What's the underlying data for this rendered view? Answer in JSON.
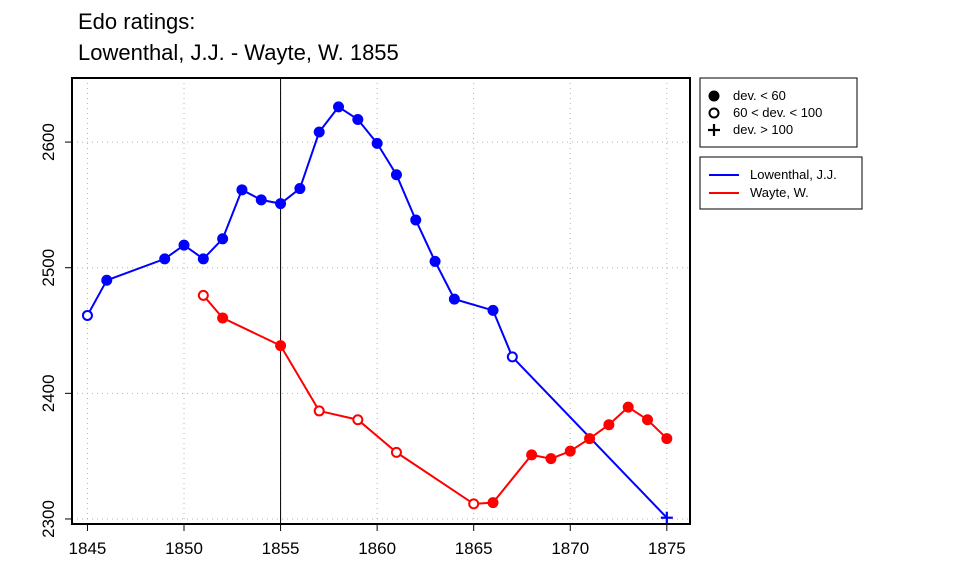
{
  "chart_data": {
    "type": "line",
    "title": "Edo ratings:",
    "subtitle": "Lowenthal, J.J. - Wayte, W. 1855",
    "xlabel": "",
    "ylabel": "",
    "xlim": [
      1844.2,
      1876.2
    ],
    "ylim": [
      2296,
      2651
    ],
    "x_ticks": [
      1845,
      1850,
      1855,
      1860,
      1865,
      1870,
      1875
    ],
    "y_ticks": [
      2300,
      2400,
      2500,
      2600
    ],
    "grid": true,
    "grid_style": "dotted",
    "reference_line_x": 1855,
    "marker_legend": [
      {
        "marker": "filled-circle",
        "label": "dev. < 60"
      },
      {
        "marker": "open-circle",
        "label": "60 < dev. < 100"
      },
      {
        "marker": "plus",
        "label": "dev. > 100"
      }
    ],
    "series": [
      {
        "name": "Lowenthal, J.J.",
        "color": "#0000ff",
        "points": [
          {
            "x": 1845,
            "y": 2462,
            "marker": "open-circle"
          },
          {
            "x": 1846,
            "y": 2490,
            "marker": "filled-circle"
          },
          {
            "x": 1849,
            "y": 2507,
            "marker": "filled-circle"
          },
          {
            "x": 1850,
            "y": 2518,
            "marker": "filled-circle"
          },
          {
            "x": 1851,
            "y": 2507,
            "marker": "filled-circle"
          },
          {
            "x": 1852,
            "y": 2523,
            "marker": "filled-circle"
          },
          {
            "x": 1853,
            "y": 2562,
            "marker": "filled-circle"
          },
          {
            "x": 1854,
            "y": 2554,
            "marker": "filled-circle"
          },
          {
            "x": 1855,
            "y": 2551,
            "marker": "filled-circle"
          },
          {
            "x": 1856,
            "y": 2563,
            "marker": "filled-circle"
          },
          {
            "x": 1857,
            "y": 2608,
            "marker": "filled-circle"
          },
          {
            "x": 1858,
            "y": 2628,
            "marker": "filled-circle"
          },
          {
            "x": 1859,
            "y": 2618,
            "marker": "filled-circle"
          },
          {
            "x": 1860,
            "y": 2599,
            "marker": "filled-circle"
          },
          {
            "x": 1861,
            "y": 2574,
            "marker": "filled-circle"
          },
          {
            "x": 1862,
            "y": 2538,
            "marker": "filled-circle"
          },
          {
            "x": 1863,
            "y": 2505,
            "marker": "filled-circle"
          },
          {
            "x": 1864,
            "y": 2475,
            "marker": "filled-circle"
          },
          {
            "x": 1866,
            "y": 2466,
            "marker": "filled-circle"
          },
          {
            "x": 1867,
            "y": 2429,
            "marker": "open-circle"
          },
          {
            "x": 1875,
            "y": 2301,
            "marker": "plus"
          }
        ]
      },
      {
        "name": "Wayte, W.",
        "color": "#ff0000",
        "points": [
          {
            "x": 1851,
            "y": 2478,
            "marker": "open-circle"
          },
          {
            "x": 1852,
            "y": 2460,
            "marker": "filled-circle"
          },
          {
            "x": 1855,
            "y": 2438,
            "marker": "filled-circle"
          },
          {
            "x": 1857,
            "y": 2386,
            "marker": "open-circle"
          },
          {
            "x": 1859,
            "y": 2379,
            "marker": "open-circle"
          },
          {
            "x": 1861,
            "y": 2353,
            "marker": "open-circle"
          },
          {
            "x": 1865,
            "y": 2312,
            "marker": "open-circle"
          },
          {
            "x": 1866,
            "y": 2313,
            "marker": "filled-circle"
          },
          {
            "x": 1868,
            "y": 2351,
            "marker": "filled-circle"
          },
          {
            "x": 1869,
            "y": 2348,
            "marker": "filled-circle"
          },
          {
            "x": 1870,
            "y": 2354,
            "marker": "filled-circle"
          },
          {
            "x": 1871,
            "y": 2364,
            "marker": "filled-circle"
          },
          {
            "x": 1872,
            "y": 2375,
            "marker": "filled-circle"
          },
          {
            "x": 1873,
            "y": 2389,
            "marker": "filled-circle"
          },
          {
            "x": 1874,
            "y": 2379,
            "marker": "filled-circle"
          },
          {
            "x": 1875,
            "y": 2364,
            "marker": "filled-circle"
          }
        ]
      }
    ]
  }
}
